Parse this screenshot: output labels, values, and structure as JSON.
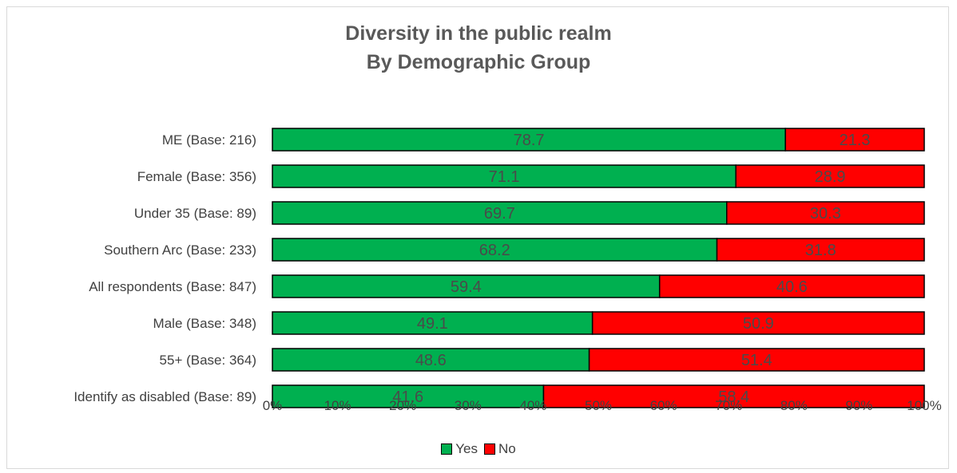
{
  "chart_data": {
    "type": "bar",
    "orientation": "horizontal",
    "stacked": "percent",
    "title": "Diversity in the public realm",
    "subtitle": "By Demographic Group",
    "categories": [
      "ME (Base: 216)",
      "Female (Base: 356)",
      "Under 35 (Base: 89)",
      "Southern Arc (Base: 233)",
      "All respondents (Base: 847)",
      "Male (Base: 348)",
      "55+ (Base: 364)",
      "Identify as disabled (Base: 89)"
    ],
    "series": [
      {
        "name": "Yes",
        "color": "#00b050",
        "values": [
          78.7,
          71.1,
          69.7,
          68.2,
          59.4,
          49.1,
          48.6,
          41.6
        ]
      },
      {
        "name": "No",
        "color": "#ff0000",
        "values": [
          21.3,
          28.9,
          30.3,
          31.8,
          40.6,
          50.9,
          51.4,
          58.4
        ]
      }
    ],
    "data_labels": [
      [
        "78.7",
        "71.1",
        "69.7",
        "68.2",
        "59.4",
        "49.1",
        "48.6",
        "41.6"
      ],
      [
        "21.3",
        "28.9",
        "30.3",
        "31.8",
        "40.6",
        "50.9",
        "51.4",
        "58.4"
      ]
    ],
    "x_ticks": [
      "0%",
      "10%",
      "20%",
      "30%",
      "40%",
      "50%",
      "60%",
      "70%",
      "80%",
      "90%",
      "100%"
    ],
    "xlim": [
      0,
      100
    ],
    "xlabel": "",
    "ylabel": "",
    "grid": false,
    "legend_position": "bottom"
  }
}
